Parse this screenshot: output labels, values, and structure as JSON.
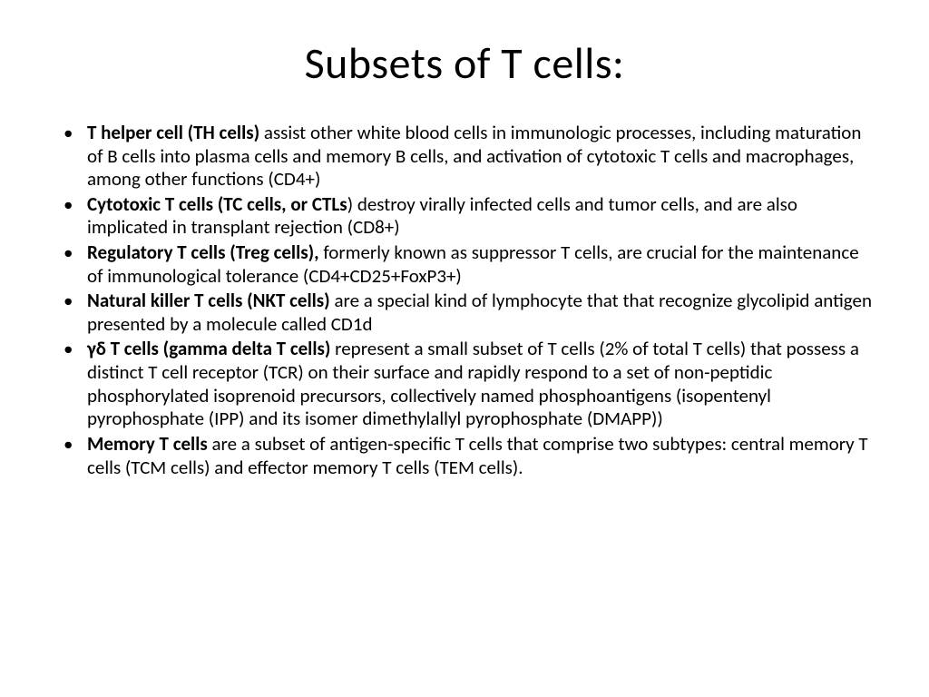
{
  "slide": {
    "title": "Subsets of T cells:",
    "title_fontsize": 48,
    "body_fontsize": 21,
    "line_height": 1.22,
    "background_color": "#ffffff",
    "text_color": "#000000",
    "font_family": "Calibri, 'Segoe UI', Arial, sans-serif",
    "bullets": [
      {
        "bold": "T helper cell (TH cells)",
        "text": " assist other white blood cells in immunologic processes, including maturation of B cells into plasma cells and memory B cells, and activation of cytotoxic T cells and macrophages, among other functions (CD4+)"
      },
      {
        "bold": "Cytotoxic T cells (TC cells, or CTLs",
        "text": ") destroy virally infected cells and tumor cells, and are also implicated in transplant rejection (CD8+)"
      },
      {
        "bold": "Regulatory T cells (Treg cells),",
        "text": " formerly known as suppressor T cells, are crucial for the maintenance of immunological tolerance (CD4+CD25+FoxP3+)"
      },
      {
        "bold": "Natural killer T cells (NKT cells)",
        "text": " are a special kind of lymphocyte that that recognize glycolipid antigen presented by a molecule called CD1d"
      },
      {
        "bold": "γδ T cells (gamma delta T cells)",
        "text": " represent a small subset of T cells (2% of total T cells) that possess a distinct T cell receptor (TCR) on their surface and rapidly respond to a set of non-peptidic phosphorylated isoprenoid precursors, collectively named phosphoantigens (isopentenyl pyrophosphate (IPP) and its isomer dimethylallyl pyrophosphate (DMAPP))"
      },
      {
        "bold": "Memory T cells",
        "text": " are a subset of antigen-specific T cells that comprise two subtypes: central memory T cells (TCM cells) and effector memory T cells (TEM cells)."
      }
    ]
  }
}
